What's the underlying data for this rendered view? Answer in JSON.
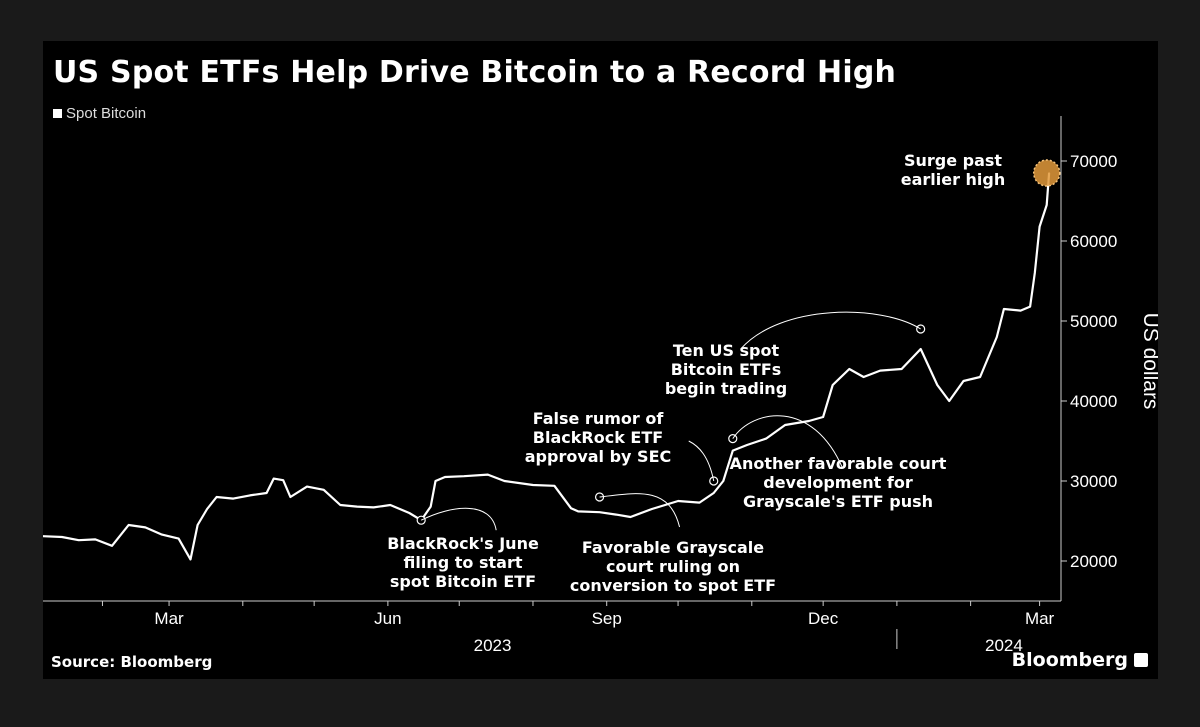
{
  "source": "Source: Bloomberg",
  "brand": "Bloomberg",
  "colors": {
    "background": "#000000",
    "line": "#ffffff",
    "axis": "#cccccc",
    "highlight": "#e39a3b"
  },
  "icons": {
    "brand": "bloomberg-logo-icon"
  },
  "chart_data": {
    "type": "line",
    "title": "US Spot ETFs Help Drive Bitcoin to a Record High",
    "ylabel": "US dollars",
    "ylim": [
      15000,
      75000
    ],
    "xlim": [
      "2023-01-07",
      "2024-03-10"
    ],
    "yticks": [
      20000,
      30000,
      40000,
      50000,
      60000,
      70000
    ],
    "xticks": [
      {
        "label": "Mar",
        "date": "2023-03-01"
      },
      {
        "label": "Jun",
        "date": "2023-06-01"
      },
      {
        "label": "Sep",
        "date": "2023-09-01"
      },
      {
        "label": "Dec",
        "date": "2023-12-01"
      },
      {
        "label": "Mar",
        "date": "2024-03-01"
      }
    ],
    "year_labels": [
      {
        "label": "2023",
        "date": "2023-07-15"
      },
      {
        "label": "2024",
        "date": "2024-02-15"
      }
    ],
    "year_divider": "2024-01-01",
    "legend": "Spot Bitcoin",
    "legend_position": "top-left",
    "grid": false,
    "series": [
      {
        "name": "Spot Bitcoin",
        "x": [
          "2023-01-07",
          "2023-01-15",
          "2023-01-22",
          "2023-01-29",
          "2023-02-05",
          "2023-02-12",
          "2023-02-19",
          "2023-02-26",
          "2023-03-05",
          "2023-03-10",
          "2023-03-13",
          "2023-03-17",
          "2023-03-21",
          "2023-03-28",
          "2023-04-04",
          "2023-04-11",
          "2023-04-14",
          "2023-04-18",
          "2023-04-21",
          "2023-04-28",
          "2023-05-05",
          "2023-05-12",
          "2023-05-19",
          "2023-05-26",
          "2023-06-02",
          "2023-06-10",
          "2023-06-15",
          "2023-06-19",
          "2023-06-21",
          "2023-06-25",
          "2023-07-03",
          "2023-07-13",
          "2023-07-20",
          "2023-08-01",
          "2023-08-10",
          "2023-08-17",
          "2023-08-20",
          "2023-08-29",
          "2023-09-05",
          "2023-09-11",
          "2023-09-20",
          "2023-10-01",
          "2023-10-10",
          "2023-10-16",
          "2023-10-20",
          "2023-10-24",
          "2023-10-30",
          "2023-11-07",
          "2023-11-15",
          "2023-11-25",
          "2023-12-01",
          "2023-12-05",
          "2023-12-12",
          "2023-12-18",
          "2023-12-25",
          "2024-01-03",
          "2024-01-11",
          "2024-01-18",
          "2024-01-23",
          "2024-01-29",
          "2024-02-05",
          "2024-02-12",
          "2024-02-15",
          "2024-02-22",
          "2024-02-26",
          "2024-02-28",
          "2024-03-01",
          "2024-03-04",
          "2024-03-05"
        ],
        "values": [
          23100,
          23000,
          22600,
          22700,
          21900,
          24500,
          24200,
          23300,
          22800,
          20200,
          24500,
          26500,
          28000,
          27800,
          28200,
          28500,
          30300,
          30100,
          28000,
          29300,
          28900,
          27000,
          26800,
          26700,
          27000,
          26000,
          25100,
          26800,
          30000,
          30500,
          30600,
          30800,
          30000,
          29500,
          29400,
          26600,
          26200,
          26100,
          25800,
          25500,
          26500,
          27500,
          27300,
          28500,
          30000,
          33800,
          34500,
          35300,
          37000,
          37500,
          38000,
          42000,
          44000,
          43000,
          43800,
          44000,
          46500,
          42000,
          40000,
          42500,
          43000,
          48000,
          51500,
          51300,
          51800,
          56000,
          61800,
          64500,
          68500
        ]
      }
    ],
    "annotations": [
      {
        "text": [
          "BlackRock's June",
          "filing to start",
          "spot Bitcoin ETF"
        ],
        "date": "2023-06-15",
        "value": 25100
      },
      {
        "text": [
          "Favorable Grayscale",
          "court ruling on",
          "conversion to spot ETF"
        ],
        "date": "2023-08-29",
        "value": 28000
      },
      {
        "text": [
          "False rumor of",
          "BlackRock ETF",
          "approval by SEC"
        ],
        "date": "2023-10-16",
        "value": 30000
      },
      {
        "text": [
          "Another favorable court",
          "development for",
          "Grayscale's ETF push"
        ],
        "date": "2023-10-24",
        "value": 35300
      },
      {
        "text": [
          "Ten US spot",
          "Bitcoin ETFs",
          "begin trading"
        ],
        "date": "2024-01-11",
        "value": 49000
      },
      {
        "text": [
          "Surge past",
          "earlier high"
        ],
        "date": "2024-03-04",
        "value": 68500
      }
    ]
  }
}
